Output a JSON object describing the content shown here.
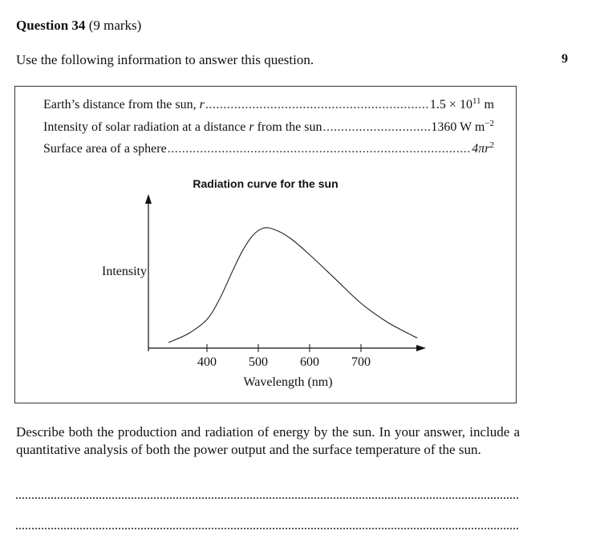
{
  "question": {
    "number_label": "Question 34",
    "marks": "(9 marks)",
    "intro": "Use the following information to answer this question.",
    "page_number": "9",
    "prompt": "Describe both the production and radiation of energy by the sun. In your answer, include a quantitative analysis of both the power output and the surface temperature of the sun."
  },
  "info": {
    "row1": {
      "label": "Earth’s distance from the sun, ",
      "var": "r",
      "value_base": "1.5 × 10",
      "value_exp": "11",
      "value_unit": " m"
    },
    "row2": {
      "label": "Intensity of solar radiation at a distance ",
      "var": "r",
      "label_end": " from the sun",
      "value_base": "1360 W m",
      "value_exp": "−2"
    },
    "row3": {
      "label": "Surface area of a sphere",
      "value_base": "4πr",
      "value_exp": "2"
    }
  },
  "chart_data": {
    "type": "line",
    "title": "Radiation curve for the sun",
    "xlabel": "Wavelength (nm)",
    "ylabel": "Intensity",
    "x_ticks": [
      400,
      500,
      600,
      700
    ],
    "xlim": [
      340,
      850
    ],
    "series": [
      {
        "x": [
          325,
          365,
          400,
          425,
          450,
          470,
          490,
          510,
          530,
          560,
          600,
          650,
          700,
          750,
          800,
          810
        ],
        "y": [
          0.0,
          0.08,
          0.2,
          0.38,
          0.62,
          0.8,
          0.93,
          0.99,
          0.98,
          0.91,
          0.76,
          0.55,
          0.34,
          0.18,
          0.06,
          0.04
        ]
      }
    ]
  }
}
